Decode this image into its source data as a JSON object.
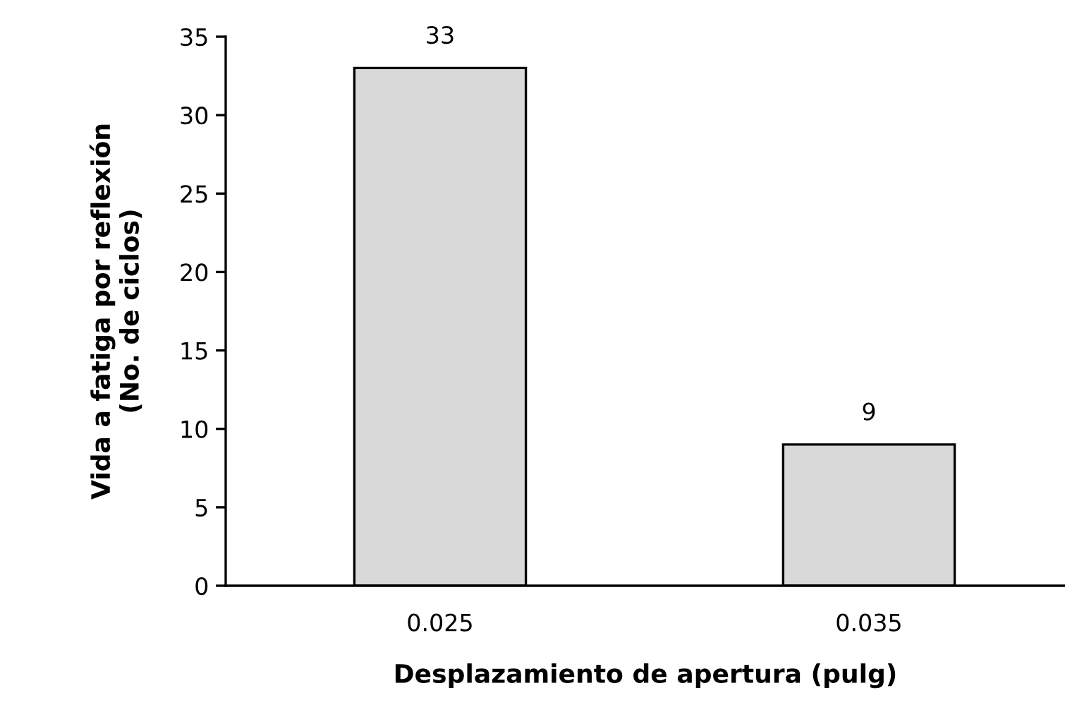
{
  "chart_data": {
    "type": "bar",
    "xlabel": "Desplazamiento de apertura (pulg)",
    "ylabel": "Vida a fatiga por reflexión\n(No. de ciclos)",
    "categories": [
      "0.025",
      "0.035"
    ],
    "values": [
      33,
      9
    ],
    "color": "#d9d9d9",
    "ylim": [
      0,
      35
    ],
    "yticks": [
      0,
      5,
      10,
      15,
      20,
      25,
      30,
      35
    ],
    "data_labels": true,
    "grid": false,
    "legend": false
  }
}
